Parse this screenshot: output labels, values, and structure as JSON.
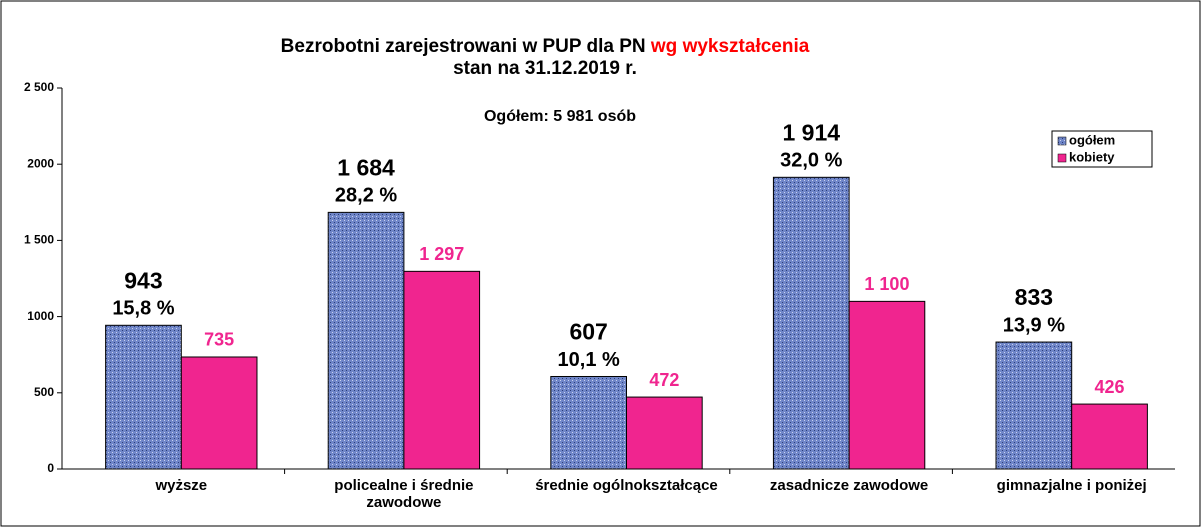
{
  "chart_data": {
    "type": "bar",
    "title": "Bezrobotni zarejestrowani w PUP dla PN",
    "title_highlight": "wg wykształcenia",
    "title_highlight_color": "#ff0000",
    "subtitle": "stan na 31.12.2019 r.",
    "annotation": "Ogółem: 5 981 osób",
    "categories": [
      "wyższe",
      "policealne i średnie zawodowe",
      "średnie ogólnokształcące",
      "zasadnicze zawodowe",
      "gimnazjalne i poniżej"
    ],
    "series": [
      {
        "name": "ogółem",
        "color": "#7086c8",
        "values": [
          943,
          1684,
          607,
          1914,
          833
        ],
        "value_labels": [
          "943",
          "1 684",
          "607",
          "1 914",
          "833"
        ],
        "percent_labels": [
          "15,8 %",
          "28,2 %",
          "10,1 %",
          "32,0 %",
          "13,9 %"
        ]
      },
      {
        "name": "kobiety",
        "color": "#f0258f",
        "values": [
          735,
          1297,
          472,
          1100,
          426
        ],
        "value_labels": [
          "735",
          "1 297",
          "472",
          "1 100",
          "426"
        ]
      }
    ],
    "ylim": [
      0,
      2500
    ],
    "yticks": [
      0,
      500,
      1000,
      {
        "value": 1500,
        "label": "1 500"
      },
      2000,
      {
        "value": 2500,
        "label": "2 500"
      }
    ],
    "grid": false,
    "legend": "top-right"
  }
}
